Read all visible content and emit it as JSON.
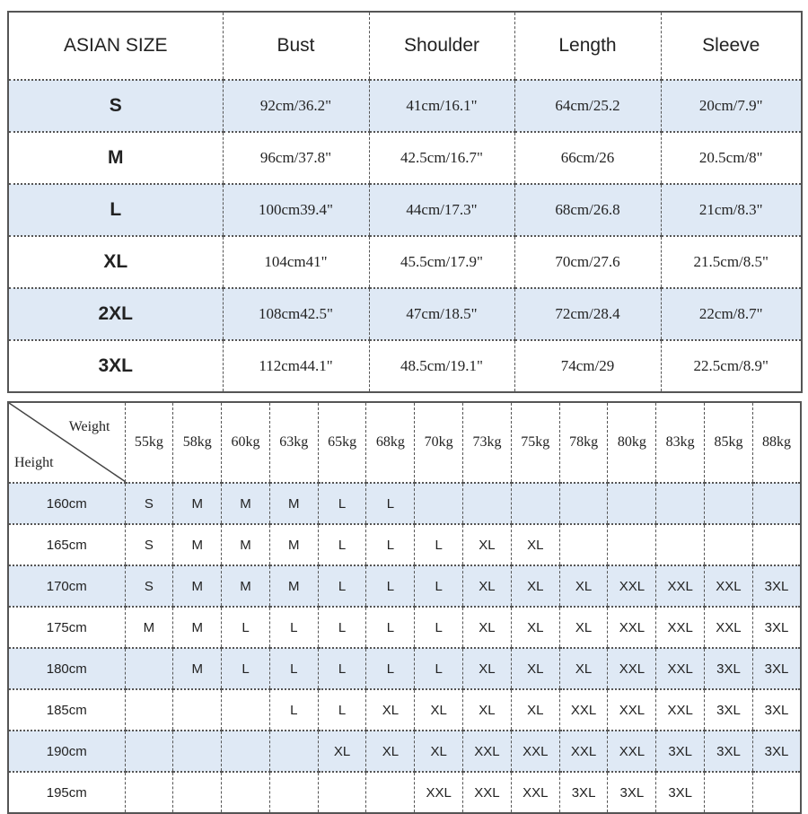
{
  "size_table": {
    "headers": [
      "ASIAN SIZE",
      "Bust",
      "Shoulder",
      "Length",
      "Sleeve"
    ],
    "rows": [
      [
        "S",
        "92cm/36.2\"",
        "41cm/16.1\"",
        "64cm/25.2",
        "20cm/7.9\""
      ],
      [
        "M",
        "96cm/37.8\"",
        "42.5cm/16.7\"",
        "66cm/26",
        "20.5cm/8\""
      ],
      [
        "L",
        "100cm39.4\"",
        "44cm/17.3\"",
        "68cm/26.8",
        "21cm/8.3\""
      ],
      [
        "XL",
        "104cm41\"",
        "45.5cm/17.9\"",
        "70cm/27.6",
        "21.5cm/8.5\""
      ],
      [
        "2XL",
        "108cm42.5\"",
        "47cm/18.5\"",
        "72cm/28.4",
        "22cm/8.7\""
      ],
      [
        "3XL",
        "112cm44.1\"",
        "48.5cm/19.1\"",
        "74cm/29",
        "22.5cm/8.9\""
      ]
    ]
  },
  "fit_table": {
    "corner_weight": "Weight",
    "corner_height": "Height",
    "weights": [
      "55kg",
      "58kg",
      "60kg",
      "63kg",
      "65kg",
      "68kg",
      "70kg",
      "73kg",
      "75kg",
      "78kg",
      "80kg",
      "83kg",
      "85kg",
      "88kg"
    ],
    "rows": [
      {
        "height": "160cm",
        "sizes": [
          "S",
          "M",
          "M",
          "M",
          "L",
          "L",
          "",
          "",
          "",
          "",
          "",
          "",
          "",
          ""
        ]
      },
      {
        "height": "165cm",
        "sizes": [
          "S",
          "M",
          "M",
          "M",
          "L",
          "L",
          "L",
          "XL",
          "XL",
          "",
          "",
          "",
          "",
          ""
        ]
      },
      {
        "height": "170cm",
        "sizes": [
          "S",
          "M",
          "M",
          "M",
          "L",
          "L",
          "L",
          "XL",
          "XL",
          "XL",
          "XXL",
          "XXL",
          "XXL",
          "3XL"
        ]
      },
      {
        "height": "175cm",
        "sizes": [
          "M",
          "M",
          "L",
          "L",
          "L",
          "L",
          "L",
          "XL",
          "XL",
          "XL",
          "XXL",
          "XXL",
          "XXL",
          "3XL"
        ]
      },
      {
        "height": "180cm",
        "sizes": [
          "",
          "M",
          "L",
          "L",
          "L",
          "L",
          "L",
          "XL",
          "XL",
          "XL",
          "XXL",
          "XXL",
          "3XL",
          "3XL"
        ]
      },
      {
        "height": "185cm",
        "sizes": [
          "",
          "",
          "",
          "L",
          "L",
          "XL",
          "XL",
          "XL",
          "XL",
          "XXL",
          "XXL",
          "XXL",
          "3XL",
          "3XL"
        ]
      },
      {
        "height": "190cm",
        "sizes": [
          "",
          "",
          "",
          "",
          "XL",
          "XL",
          "XL",
          "XXL",
          "XXL",
          "XXL",
          "XXL",
          "3XL",
          "3XL",
          "3XL"
        ]
      },
      {
        "height": "195cm",
        "sizes": [
          "",
          "",
          "",
          "",
          "",
          "",
          "XXL",
          "XXL",
          "XXL",
          "3XL",
          "3XL",
          "3XL",
          "",
          ""
        ]
      }
    ]
  },
  "colors": {
    "row_highlight": "#dfe9f5",
    "border": "#555555"
  }
}
